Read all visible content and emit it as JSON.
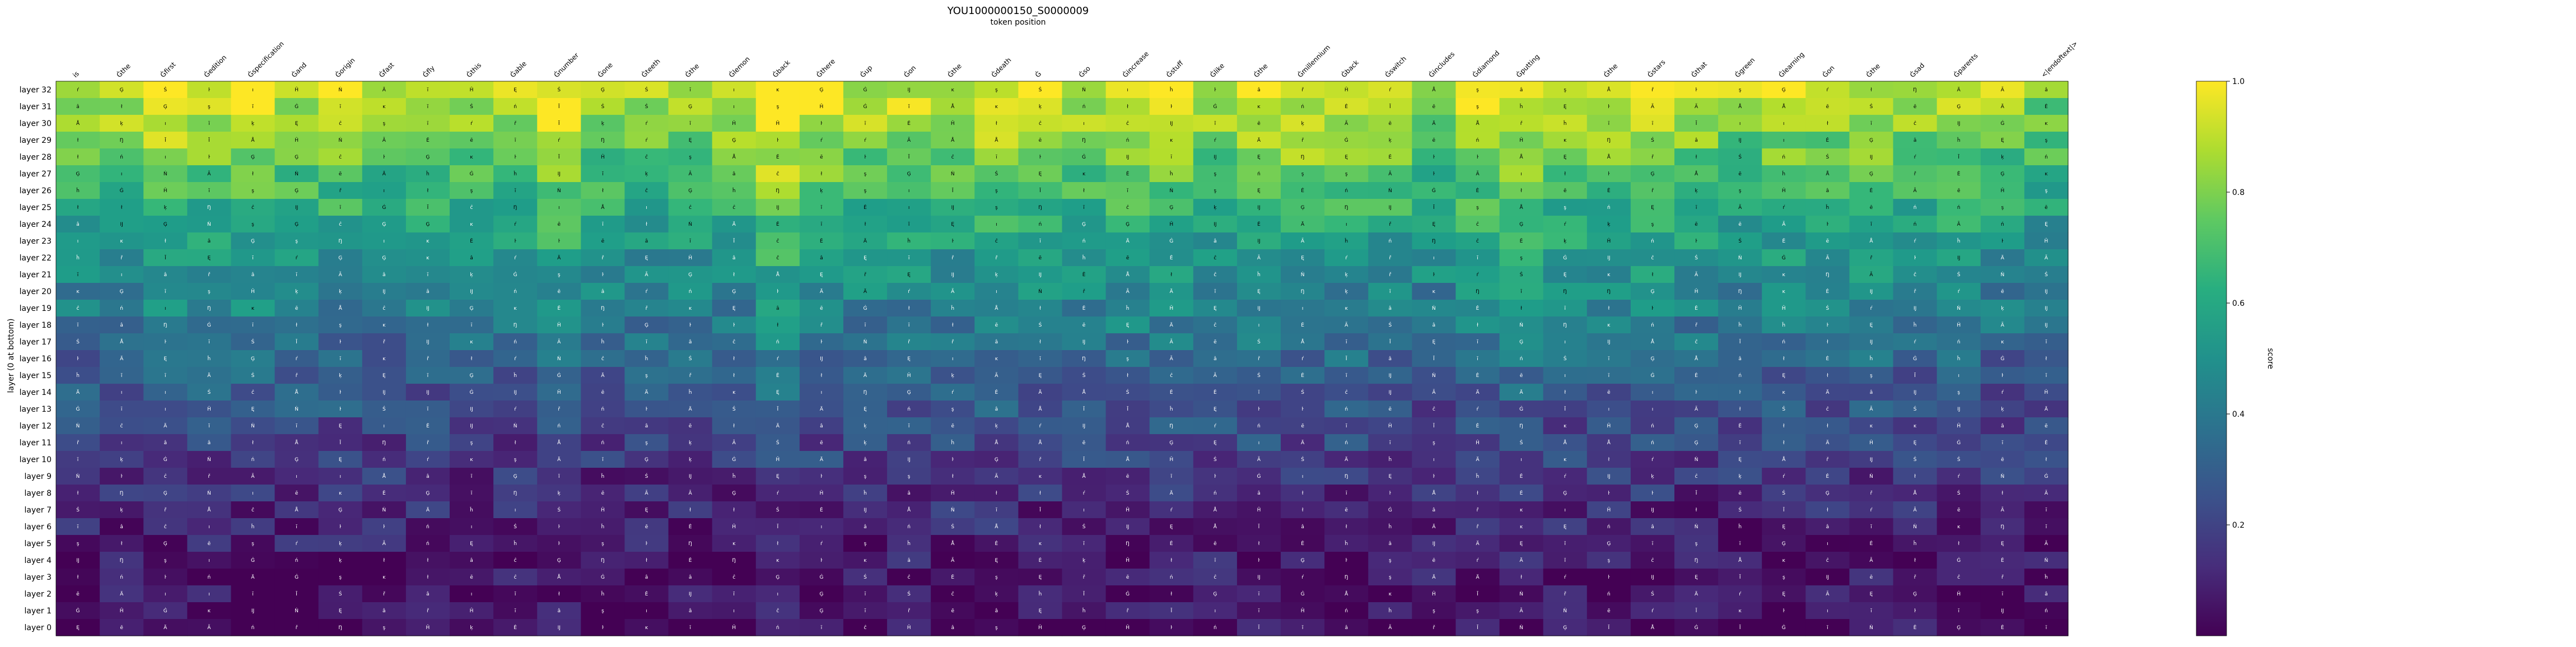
{
  "chart_data": {
    "type": "heatmap",
    "title": "YOU1000000150_S0000009",
    "subtitle": "token position",
    "ylabel": "layer (0 at bottom)",
    "colorbar_label": "score",
    "colorbar_ticks": [
      "0.2",
      "0.4",
      "0.6",
      "0.8",
      "1.0"
    ],
    "colorbar_tick_values": [
      0.2,
      0.4,
      0.6,
      0.8,
      1.0
    ],
    "colorbar_range": [
      0.0,
      1.0
    ],
    "colormap": "viridis",
    "x_tokens": [
      "is",
      "Ġthe",
      "Ġfirst",
      "Ġedition",
      "Ġspecification",
      "Ġand",
      "Ġorigin",
      "Ġfast",
      "Ġfly",
      "Ġthis",
      "Ġable",
      "Ġnumber",
      "Ġone",
      "Ġteeth",
      "Ġthe",
      "Ġlemon",
      "Ġback",
      "Ġthere",
      "Ġup",
      "Ġon",
      "Ġthe",
      "Ġdeath",
      "Ġ",
      "Ġso",
      "Ġincrease",
      "Ġstuff",
      "Ġlike",
      "Ġthe",
      "Ġmillennium",
      "Ġback",
      "Ġswitch",
      "Ġincludes",
      "Ġdiamond",
      "Ġputting",
      "",
      "Ġthe",
      "Ġstars",
      "Ġthat",
      "Ġgreen",
      "Ġlearning",
      "Ġon",
      "Ġthe",
      "Ġsad",
      "Ġparents",
      "",
      "<|endoftext|>"
    ],
    "y_layers": [
      "layer 32",
      "layer 31",
      "layer 30",
      "layer 29",
      "layer 28",
      "layer 27",
      "layer 26",
      "layer 25",
      "layer 24",
      "layer 23",
      "layer 22",
      "layer 21",
      "layer 20",
      "layer 19",
      "layer 18",
      "layer 17",
      "layer 16",
      "layer 15",
      "layer 14",
      "layer 13",
      "layer 12",
      "layer 11",
      "layer 10",
      "layer 9",
      "layer 8",
      "layer 7",
      "layer 6",
      "layer 5",
      "layer 4",
      "layer 3",
      "layer 2",
      "layer 1",
      "layer 0"
    ],
    "glyphs": [
      "ĉ",
      "Ġ",
      "Ã",
      "Ä",
      "â",
      "ī",
      "Å",
      "Ĳ",
      "Ģ",
      "ı",
      "ł",
      "ŀ",
      "Ń",
      "ł",
      "Ŋ",
      "ĸ",
      "ĥ",
      "Ė",
      "Ę",
      "Ī",
      "ē",
      "ĭ",
      "ķ",
      "Ĥ",
      "ń",
      "ř",
      "ŕ",
      "Ś",
      "ş"
    ]
  }
}
